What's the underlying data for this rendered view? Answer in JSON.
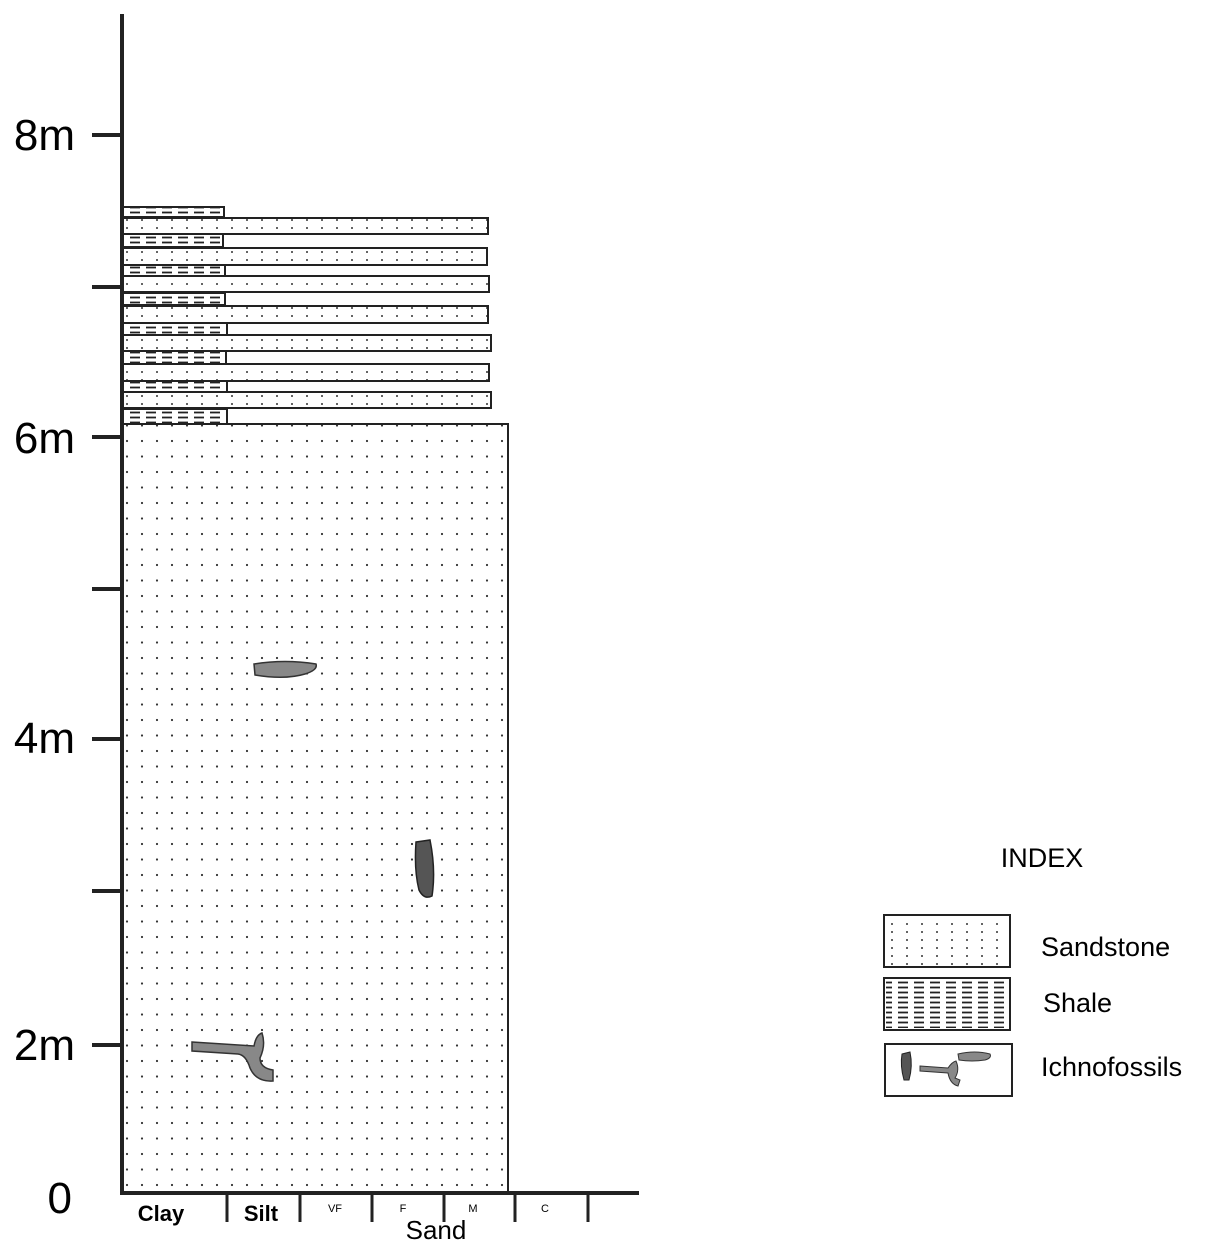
{
  "depth_axis": {
    "labels": [
      "8m",
      "6m",
      "4m",
      "2m",
      "0"
    ]
  },
  "grain_axis": {
    "labels": [
      "Clay",
      "Silt",
      "VF",
      "F",
      "M",
      "C"
    ],
    "group": "Sand"
  },
  "index": {
    "title": "INDEX",
    "entries": [
      "Sandstone",
      "Shale",
      "Ichnofossils"
    ]
  }
}
